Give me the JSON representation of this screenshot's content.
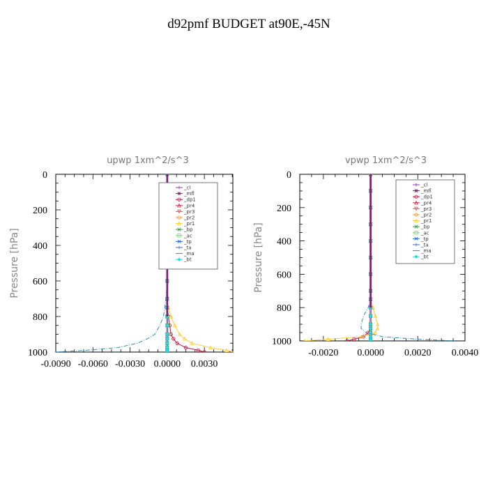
{
  "figure": {
    "title": "d92pmf  BUDGET at90E,-45N"
  },
  "chart_data": [
    {
      "type": "line",
      "title": "upwp   1xm^2/s^3",
      "ylabel": "Pressure  [hPa]",
      "xlim": [
        -0.009,
        0.0053
      ],
      "ylim": [
        1000,
        0
      ],
      "xticks": [
        -0.009,
        -0.006,
        -0.003,
        0.0,
        0.003
      ],
      "xtick_labels": [
        "-0.0090",
        "-0.0060",
        "-0.0030",
        "0.0000",
        "0.0030"
      ],
      "yticks": [
        0,
        200,
        400,
        600,
        800,
        1000
      ],
      "ytick_labels": [
        "0",
        "200",
        "400",
        "600",
        "800",
        "1000"
      ],
      "legend": "top-right",
      "levels": [
        0,
        100,
        200,
        300,
        400,
        500,
        600,
        700,
        750,
        800,
        850,
        900,
        925,
        950,
        975,
        990,
        1000
      ],
      "series": [
        {
          "name": "_cl",
          "color": "#9b30c8",
          "values": [
            0,
            0,
            0,
            0,
            0,
            0,
            0,
            0,
            0,
            0,
            0,
            0,
            0,
            0,
            0,
            0,
            0
          ]
        },
        {
          "name": "_mfl",
          "color": "#7a1f6f",
          "values": [
            0,
            0,
            0,
            0,
            0,
            0,
            0,
            0,
            0,
            0,
            0,
            0,
            0,
            0,
            0,
            0,
            0
          ]
        },
        {
          "name": "_dp1",
          "color": "#c0143c",
          "values": [
            0,
            0,
            0,
            0,
            0,
            0,
            0,
            0,
            0,
            0.0001,
            0.0002,
            0.0003,
            0.0005,
            0.0008,
            0.0015,
            0.0025,
            0.003
          ]
        },
        {
          "name": "_pr4",
          "color": "#d02040",
          "values": [
            0,
            0,
            0,
            0,
            0,
            0,
            0,
            0,
            0,
            0,
            0,
            0,
            0,
            0,
            0,
            0,
            0
          ]
        },
        {
          "name": "_pr3",
          "color": "#ff4444",
          "values": [
            0,
            0,
            0,
            0,
            0,
            0,
            0,
            0,
            0,
            0,
            0,
            0,
            0,
            0,
            0,
            0,
            0
          ]
        },
        {
          "name": "_pr2",
          "color": "#ff9933",
          "values": [
            0,
            0,
            0,
            0,
            0,
            0,
            0,
            0,
            0,
            0,
            0,
            0,
            0,
            0,
            0,
            0,
            0
          ]
        },
        {
          "name": "_pr1",
          "color": "#ffcc33",
          "values": [
            0,
            0,
            0,
            0,
            0,
            0,
            0,
            0,
            0.0001,
            0.0003,
            0.0006,
            0.001,
            0.0014,
            0.002,
            0.0035,
            0.0048,
            0.0053
          ]
        },
        {
          "name": "_bp",
          "color": "#22aa22",
          "values": [
            0,
            0,
            0,
            0,
            0,
            0,
            0,
            0,
            0,
            0,
            0,
            0,
            0,
            0,
            0,
            0,
            0
          ]
        },
        {
          "name": "_ac",
          "color": "#66dd66",
          "values": [
            0,
            0,
            0,
            0,
            0,
            0,
            0,
            0,
            0,
            0,
            0,
            0,
            0,
            0,
            0,
            0,
            0
          ]
        },
        {
          "name": "_tp",
          "color": "#2266ff",
          "values": [
            0,
            0,
            0,
            0,
            0,
            0,
            0,
            0,
            0,
            0,
            0,
            0,
            0,
            0,
            0,
            0,
            0
          ]
        },
        {
          "name": "_ta",
          "color": "#4466cc",
          "values": [
            0,
            0,
            0,
            0,
            0,
            0,
            0,
            0,
            0,
            0,
            0,
            0,
            0,
            0,
            0,
            0,
            0
          ]
        },
        {
          "name": "_ma",
          "color": "#2a8fb0",
          "values": [
            0,
            0,
            0,
            0,
            0,
            0,
            0,
            -0.0001,
            -0.0002,
            -0.0003,
            -0.0006,
            -0.001,
            -0.0016,
            -0.0024,
            -0.004,
            -0.0065,
            -0.009
          ]
        },
        {
          "name": "_bt",
          "color": "#22dddd",
          "values": [
            0,
            0,
            0,
            0,
            0,
            0,
            0,
            0,
            0,
            0,
            0,
            0,
            0,
            0,
            0,
            0,
            0
          ]
        }
      ]
    },
    {
      "type": "line",
      "title": "vpwp   1xm^2/s^3",
      "ylabel": "Pressure  [hPa]",
      "xlim": [
        -0.003,
        0.004
      ],
      "ylim": [
        1000,
        0
      ],
      "xticks": [
        -0.002,
        0.0,
        0.002,
        0.004
      ],
      "xtick_labels": [
        "-0.0020",
        "0.0000",
        "0.0020",
        "0.0040"
      ],
      "yticks": [
        0,
        200,
        400,
        600,
        800,
        1000
      ],
      "ytick_labels": [
        "0",
        "200",
        "400",
        "600",
        "800",
        "1000"
      ],
      "legend": "top-right",
      "levels": [
        0,
        100,
        200,
        300,
        400,
        500,
        600,
        700,
        750,
        800,
        850,
        900,
        925,
        950,
        975,
        990,
        1000
      ],
      "series": [
        {
          "name": "_cl",
          "color": "#9b30c8",
          "values": [
            0,
            0,
            0,
            0,
            0,
            0,
            0,
            0,
            0,
            0,
            0,
            0,
            0,
            0,
            0,
            0,
            0
          ]
        },
        {
          "name": "_mfl",
          "color": "#7a1f6f",
          "values": [
            0,
            0,
            0,
            0,
            0,
            0,
            0,
            0,
            0,
            0,
            0,
            0,
            0,
            0,
            0,
            0,
            0
          ]
        },
        {
          "name": "_dp1",
          "color": "#c0143c",
          "values": [
            0,
            0,
            0,
            0,
            0,
            0,
            0,
            0,
            0,
            0,
            0,
            0,
            0,
            -0.0001,
            -0.0003,
            -0.0007,
            -0.001
          ]
        },
        {
          "name": "_pr4",
          "color": "#d02040",
          "values": [
            0,
            0,
            0,
            0,
            0,
            0,
            0,
            0,
            0,
            0,
            0,
            0,
            0,
            0,
            0,
            0,
            0
          ]
        },
        {
          "name": "_pr3",
          "color": "#ff4444",
          "values": [
            0,
            0,
            0,
            0,
            0,
            0,
            0,
            0,
            0,
            0,
            0,
            0,
            0,
            0,
            0,
            0,
            0
          ]
        },
        {
          "name": "_pr2",
          "color": "#ff9933",
          "values": [
            0,
            0,
            0,
            0,
            0,
            0,
            0,
            0,
            0,
            0,
            0,
            0,
            0,
            0,
            0,
            0,
            0
          ]
        },
        {
          "name": "_pr1",
          "color": "#ffcc33",
          "values": [
            0,
            0,
            0,
            0,
            0,
            0,
            0,
            0,
            0,
            0.0001,
            0.0002,
            0.0003,
            0.0003,
            0.0002,
            -0.0004,
            -0.0018,
            -0.0028
          ]
        },
        {
          "name": "_bp",
          "color": "#22aa22",
          "values": [
            0,
            0,
            0,
            0,
            0,
            0,
            0,
            0,
            0,
            0,
            0,
            0,
            0,
            0,
            0,
            0,
            0
          ]
        },
        {
          "name": "_ac",
          "color": "#66dd66",
          "values": [
            0,
            0,
            0,
            0,
            0,
            0,
            0,
            0,
            0,
            0,
            0,
            0,
            0,
            0,
            0,
            0,
            0
          ]
        },
        {
          "name": "_tp",
          "color": "#2266ff",
          "values": [
            0,
            0,
            0,
            0,
            0,
            0,
            0,
            0,
            0,
            0,
            0,
            0,
            0,
            0,
            0,
            0,
            0
          ]
        },
        {
          "name": "_ta",
          "color": "#4466cc",
          "values": [
            0,
            0,
            0,
            0,
            0,
            0,
            0,
            0,
            0,
            0,
            0,
            0,
            0,
            0,
            0,
            0,
            0
          ]
        },
        {
          "name": "_ma",
          "color": "#2a8fb0",
          "values": [
            0,
            0,
            0,
            0,
            0,
            0,
            0,
            0,
            0,
            -0.0001,
            -0.0003,
            -0.0004,
            -0.0004,
            -0.0002,
            0.0005,
            0.002,
            0.0036
          ]
        },
        {
          "name": "_bt",
          "color": "#22dddd",
          "values": [
            0,
            0,
            0,
            0,
            0,
            0,
            0,
            0,
            0,
            0,
            0,
            0,
            0,
            0,
            0,
            0,
            0
          ]
        }
      ]
    }
  ]
}
